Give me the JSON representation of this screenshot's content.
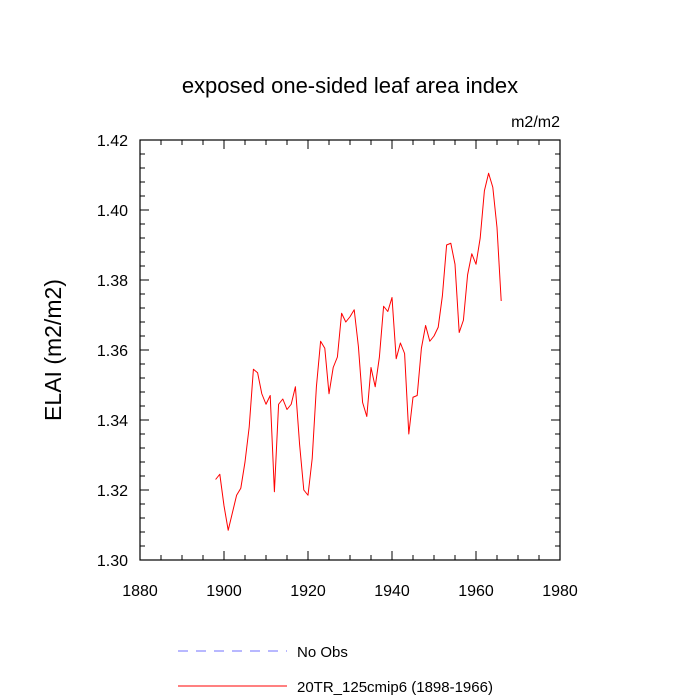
{
  "chart_data": {
    "type": "line",
    "title": "exposed one-sided leaf area index",
    "units_label": "m2/m2",
    "ylabel": "ELAI  (m2/m2)",
    "xlabel": "",
    "xlim": [
      1880,
      1980
    ],
    "ylim": [
      1.3,
      1.42
    ],
    "x_ticks": [
      1880,
      1900,
      1920,
      1940,
      1960,
      1980
    ],
    "x_tick_labels": [
      "1880",
      "1900",
      "1920",
      "1940",
      "1960",
      "1980"
    ],
    "y_ticks": [
      1.3,
      1.32,
      1.34,
      1.36,
      1.38,
      1.4,
      1.42
    ],
    "y_tick_labels": [
      "1.30",
      "1.32",
      "1.34",
      "1.36",
      "1.38",
      "1.40",
      "1.42"
    ],
    "legend": [
      {
        "label": "No Obs",
        "color": "#7070ff",
        "dash": true
      },
      {
        "label": "20TR_125cmip6 (1898-1966)",
        "color": "#ff0000",
        "dash": false
      }
    ],
    "series": [
      {
        "name": "20TR_125cmip6 (1898-1966)",
        "color": "#ff0000",
        "x": [
          1898,
          1899,
          1900,
          1901,
          1902,
          1903,
          1904,
          1905,
          1906,
          1907,
          1908,
          1909,
          1910,
          1911,
          1912,
          1913,
          1914,
          1915,
          1916,
          1917,
          1918,
          1919,
          1920,
          1921,
          1922,
          1923,
          1924,
          1925,
          1926,
          1927,
          1928,
          1929,
          1930,
          1931,
          1932,
          1933,
          1934,
          1935,
          1936,
          1937,
          1938,
          1939,
          1940,
          1941,
          1942,
          1943,
          1944,
          1945,
          1946,
          1947,
          1948,
          1949,
          1950,
          1951,
          1952,
          1953,
          1954,
          1955,
          1956,
          1957,
          1958,
          1959,
          1960,
          1961,
          1962,
          1963,
          1964,
          1965,
          1966
        ],
        "values": [
          1.323,
          1.3245,
          1.3155,
          1.3085,
          1.3135,
          1.3185,
          1.3205,
          1.328,
          1.338,
          1.3545,
          1.3535,
          1.3475,
          1.3445,
          1.347,
          1.3195,
          1.3445,
          1.346,
          1.343,
          1.3445,
          1.3495,
          1.333,
          1.32,
          1.3185,
          1.329,
          1.3495,
          1.3625,
          1.3605,
          1.3475,
          1.355,
          1.358,
          1.3705,
          1.368,
          1.3695,
          1.3715,
          1.361,
          1.345,
          1.341,
          1.355,
          1.3495,
          1.358,
          1.3725,
          1.371,
          1.375,
          1.3575,
          1.362,
          1.359,
          1.336,
          1.3465,
          1.347,
          1.3605,
          1.367,
          1.3625,
          1.364,
          1.3665,
          1.3755,
          1.39,
          1.3905,
          1.3845,
          1.365,
          1.3685,
          1.3815,
          1.3875,
          1.3845,
          1.392,
          1.4055,
          1.4105,
          1.4065,
          1.395,
          1.374
        ]
      }
    ]
  }
}
